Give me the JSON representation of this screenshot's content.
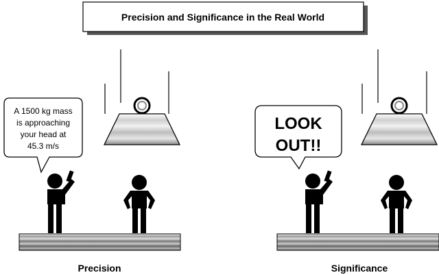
{
  "title": "Precision and Significance in the Real World",
  "panels": [
    {
      "caption": "Precision",
      "speech_lines": [
        "A 1500 kg mass",
        "is approaching",
        "your head at",
        "45.3 m/s"
      ]
    },
    {
      "caption": "Significance",
      "speech_lines": [
        "LOOK",
        "OUT!!"
      ]
    }
  ],
  "colors": {
    "ink": "#000000",
    "background": "#ffffff",
    "shadow": "#555555"
  },
  "icons": [
    "falling-weight-icon",
    "person-waving-icon",
    "person-standing-icon",
    "floor-platform-icon"
  ]
}
